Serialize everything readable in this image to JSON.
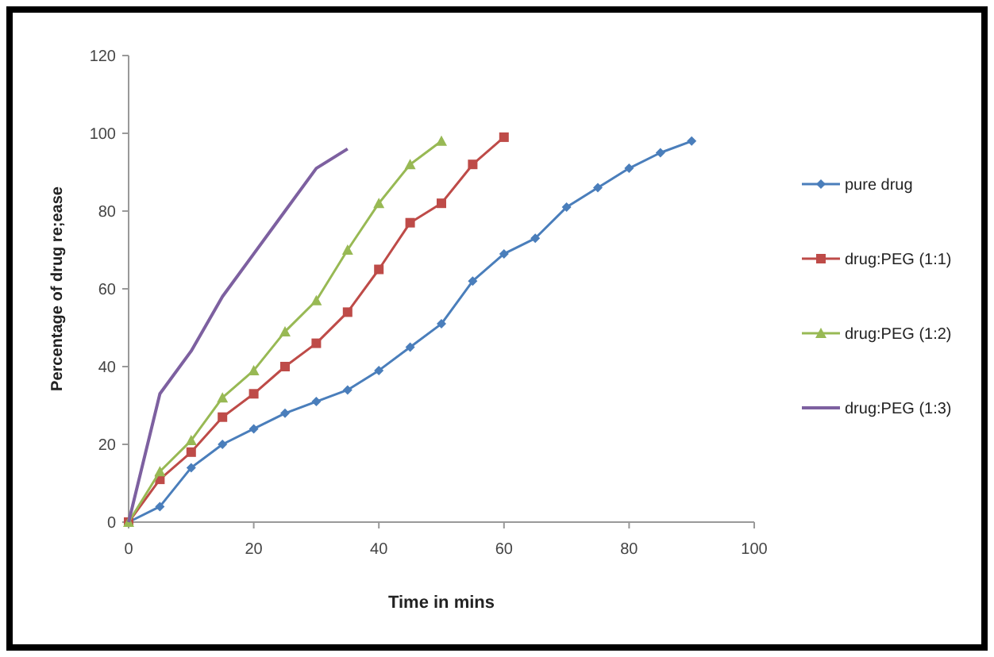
{
  "chart_data": {
    "type": "line",
    "xlabel": "Time in mins",
    "ylabel": "Percentage of drug re;ease",
    "xlim": [
      0,
      100
    ],
    "xticks": [
      0,
      20,
      40,
      60,
      80,
      100
    ],
    "ylim": [
      0,
      120
    ],
    "yticks": [
      0,
      20,
      40,
      60,
      80,
      100,
      120
    ],
    "grid": false,
    "legend": "right",
    "series": [
      {
        "name": "pure drug",
        "color": "#4a7ebb",
        "marker": "diamond",
        "x": [
          0,
          5,
          10,
          15,
          20,
          25,
          30,
          35,
          40,
          45,
          50,
          55,
          60,
          65,
          70,
          75,
          80,
          85,
          90
        ],
        "values": [
          0,
          4,
          14,
          20,
          24,
          28,
          31,
          34,
          39,
          45,
          51,
          62,
          69,
          73,
          81,
          86,
          91,
          95,
          98
        ]
      },
      {
        "name": "drug:PEG (1:1)",
        "color": "#be4b48",
        "marker": "square",
        "x": [
          0,
          5,
          10,
          15,
          20,
          25,
          30,
          35,
          40,
          45,
          50,
          55,
          60
        ],
        "values": [
          0,
          11,
          18,
          27,
          33,
          40,
          46,
          54,
          65,
          77,
          82,
          92,
          99
        ]
      },
      {
        "name": "drug:PEG (1:2)",
        "color": "#98b954",
        "marker": "triangle",
        "x": [
          0,
          5,
          10,
          15,
          20,
          25,
          30,
          35,
          40,
          45,
          50
        ],
        "values": [
          0,
          13,
          21,
          32,
          39,
          49,
          57,
          70,
          82,
          92,
          98
        ]
      },
      {
        "name": "drug:PEG (1:3)",
        "color": "#7d60a0",
        "marker": "none",
        "x": [
          0,
          5,
          10,
          15,
          20,
          25,
          30,
          35
        ],
        "values": [
          0,
          33,
          44,
          58,
          69,
          80,
          91,
          96
        ]
      }
    ]
  }
}
